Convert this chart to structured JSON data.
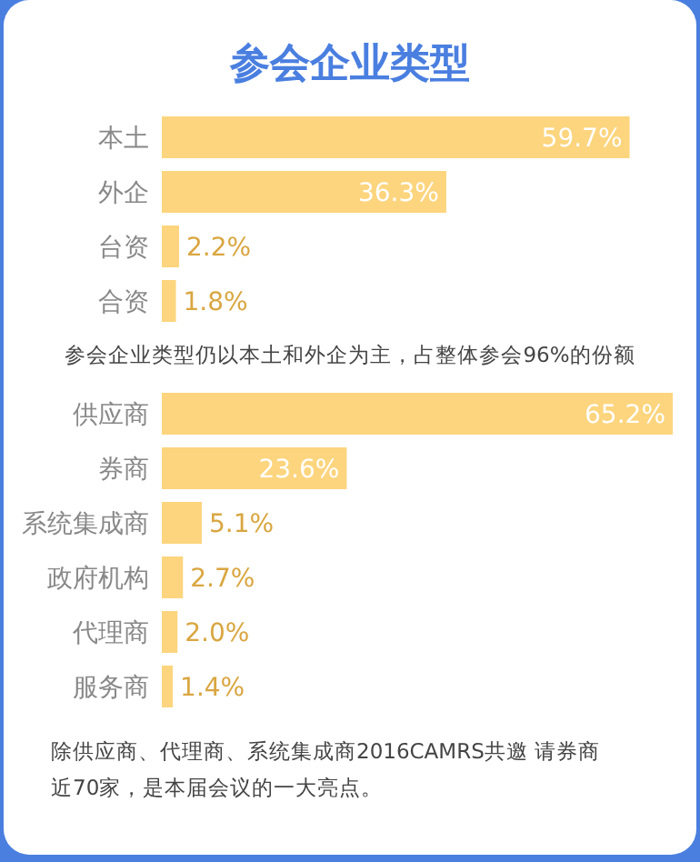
{
  "chart_data": [
    {
      "type": "bar",
      "orientation": "horizontal",
      "title": "参会企业类型",
      "categories": [
        "本土",
        "外企",
        "台资",
        "合资"
      ],
      "values": [
        59.7,
        36.3,
        2.2,
        1.8
      ],
      "color": "#fdd57e",
      "value_labels": [
        "59.7%",
        "36.3%",
        "2.2%",
        "1.8%"
      ],
      "annotations": [
        "参会企业类型仍以本土和外企为主，占整体参会96%的份额"
      ]
    },
    {
      "type": "bar",
      "orientation": "horizontal",
      "categories": [
        "供应商",
        "券商",
        "系统集成商",
        "政府机构",
        "代理商",
        "服务商"
      ],
      "values": [
        65.2,
        23.6,
        5.1,
        2.7,
        2.0,
        1.4
      ],
      "color": "#fdd57e",
      "value_labels": [
        "65.2%",
        "23.6%",
        "5.1%",
        "2.7%",
        "2.0%",
        "1.4%"
      ],
      "annotations": [
        "除供应商、代理商、系统集成商2016CAMRS共邀 请券商近70家，是本届会议的一大亮点。"
      ]
    }
  ]
}
